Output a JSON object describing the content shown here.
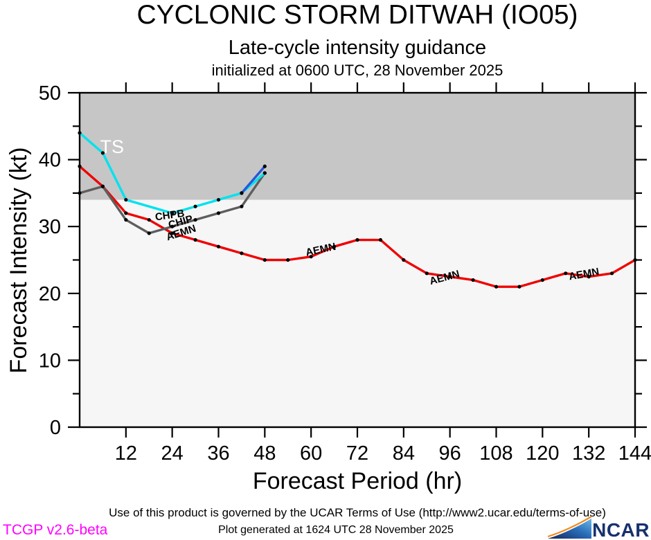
{
  "header": {
    "title": "CYCLONIC STORM DITWAH (IO05)",
    "subtitle": "Late-cycle intensity guidance",
    "init_line": "initialized at 0600 UTC, 28 November 2025"
  },
  "chart_data": {
    "type": "line",
    "title": "CYCLONIC STORM DITWAH (IO05) Late-cycle intensity guidance",
    "xlabel": "Forecast Period (hr)",
    "ylabel": "Forecast Intensity (kt)",
    "xlim": [
      0,
      144
    ],
    "ylim": [
      0,
      50
    ],
    "x_ticks": [
      12,
      24,
      36,
      48,
      60,
      72,
      84,
      96,
      108,
      120,
      132,
      144
    ],
    "y_ticks": [
      0,
      10,
      20,
      30,
      40,
      50
    ],
    "y_minor_ticks": [
      5,
      15,
      25,
      35,
      45
    ],
    "grid": false,
    "ts_threshold": 34,
    "band_color": "#c6c6c6",
    "inner_bg": "#f6f6f6",
    "series": [
      {
        "name": "AEMN",
        "color": "#f00000",
        "x": [
          0,
          6,
          12,
          18,
          24,
          30,
          36,
          42,
          48,
          54,
          60,
          66,
          72,
          78,
          84,
          90,
          96,
          102,
          108,
          114,
          120,
          126,
          132,
          138,
          144
        ],
        "values": [
          39,
          36,
          32,
          31,
          29,
          28,
          27,
          26,
          25,
          25,
          25.5,
          27,
          28,
          28,
          25,
          23,
          22.5,
          22,
          21,
          21,
          22,
          23,
          22.5,
          23,
          25
        ]
      },
      {
        "name": "CHIP",
        "color": "#5e5e5e",
        "x": [
          0,
          6,
          12,
          18,
          24,
          30,
          36,
          42,
          48
        ],
        "values": [
          35,
          36,
          31,
          29,
          30,
          31,
          32,
          33,
          38
        ]
      },
      {
        "name": "CHPB",
        "color": "#00e2ee",
        "x": [
          0,
          6,
          12,
          24,
          30,
          36,
          42,
          48
        ],
        "values": [
          44,
          41,
          34,
          32,
          33,
          34,
          35,
          38
        ]
      },
      {
        "name": "",
        "color": "#2757d8",
        "x": [
          42,
          48
        ],
        "values": [
          35,
          39
        ]
      }
    ],
    "annotations": [
      {
        "text": "TS",
        "x": 5.3,
        "y": 41.0,
        "color": "#ffffff",
        "size": 27,
        "rot": 0,
        "bold": false
      },
      {
        "text": "CHPB",
        "x": 19.7,
        "y": 30.9,
        "color": "#000000",
        "size": 15,
        "rot": -8,
        "bold": true
      },
      {
        "text": "CHIP",
        "x": 23.3,
        "y": 29.7,
        "color": "#000000",
        "size": 15,
        "rot": -16,
        "bold": true
      },
      {
        "text": "AEMN",
        "x": 22.8,
        "y": 27.9,
        "color": "#000000",
        "size": 15,
        "rot": -18,
        "bold": true
      },
      {
        "text": "AEMN",
        "x": 58.8,
        "y": 25.6,
        "color": "#000000",
        "size": 15,
        "rot": -12,
        "bold": true
      },
      {
        "text": "AEMN",
        "x": 91.0,
        "y": 21.3,
        "color": "#000000",
        "size": 15,
        "rot": -15,
        "bold": true
      },
      {
        "text": "AEMN",
        "x": 127.0,
        "y": 22.0,
        "color": "#000000",
        "size": 15,
        "rot": -10,
        "bold": true
      }
    ],
    "legend_position": "none"
  },
  "footer": {
    "terms": "Use of this product is governed by the UCAR Terms of Use (http://www2.ucar.edu/terms-of-use)",
    "version": "TCGP v2.6-beta",
    "generated": "Plot generated at 1624 UTC  28 November 2025",
    "ncar": "NCAR"
  }
}
